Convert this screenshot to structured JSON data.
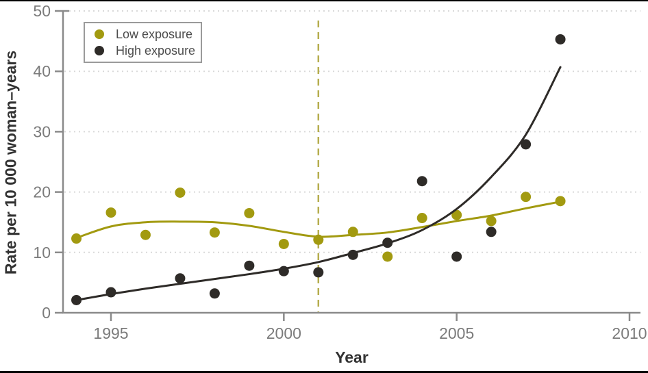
{
  "figure": {
    "background": "#ffffff",
    "border_color": "#000000"
  },
  "legend": {
    "position": "top-left",
    "items": [
      {
        "label": "Low exposure",
        "color": "#a29a10"
      },
      {
        "label": "High exposure",
        "color": "#2e2b28"
      }
    ]
  },
  "chart_data": {
    "type": "scatter",
    "title": "",
    "xlabel": "Year",
    "ylabel": "Rate per 10 000 woman–years",
    "xlim": [
      1993.6,
      2010.3
    ],
    "ylim": [
      0,
      50
    ],
    "x_ticks": [
      1995,
      2000,
      2005,
      2010
    ],
    "y_ticks": [
      0,
      10,
      20,
      30,
      40,
      50
    ],
    "grid": "dotted-horizontal",
    "grid_color": "#d9d9d9",
    "axis_color": "#8a8a8a",
    "tick_label_color": "#7b7b7b",
    "reference_line": {
      "x": 2001,
      "style": "dashed",
      "color": "#b5ad4e"
    },
    "series": [
      {
        "name": "Low exposure",
        "color": "#a29a10",
        "points": [
          [
            1994,
            12.3
          ],
          [
            1995,
            16.6
          ],
          [
            1996,
            12.9
          ],
          [
            1997,
            19.9
          ],
          [
            1998,
            13.3
          ],
          [
            1999,
            16.5
          ],
          [
            2000,
            11.4
          ],
          [
            2001,
            12.1
          ],
          [
            2002,
            13.4
          ],
          [
            2003,
            9.3
          ],
          [
            2004,
            15.7
          ],
          [
            2005,
            16.2
          ],
          [
            2006,
            15.2
          ],
          [
            2007,
            19.2
          ],
          [
            2008,
            18.5
          ]
        ],
        "trend": [
          [
            1994,
            12.4
          ],
          [
            1995,
            14.3
          ],
          [
            1996,
            15.0
          ],
          [
            1997,
            15.1
          ],
          [
            1998,
            15.0
          ],
          [
            1999,
            14.4
          ],
          [
            2000,
            13.4
          ],
          [
            2001,
            12.6
          ],
          [
            2002,
            12.9
          ],
          [
            2003,
            13.3
          ],
          [
            2004,
            14.2
          ],
          [
            2005,
            15.2
          ],
          [
            2006,
            16.1
          ],
          [
            2007,
            17.3
          ],
          [
            2008,
            18.4
          ]
        ]
      },
      {
        "name": "High exposure",
        "color": "#2e2b28",
        "points": [
          [
            1994,
            2.1
          ],
          [
            1995,
            3.4
          ],
          [
            1997,
            5.7
          ],
          [
            1998,
            3.2
          ],
          [
            1999,
            7.8
          ],
          [
            2000,
            6.9
          ],
          [
            2001,
            6.7
          ],
          [
            2002,
            9.6
          ],
          [
            2003,
            11.6
          ],
          [
            2004,
            21.8
          ],
          [
            2005,
            9.3
          ],
          [
            2006,
            13.4
          ],
          [
            2007,
            27.9
          ],
          [
            2008,
            45.3
          ]
        ],
        "trend": [
          [
            1994,
            2.1
          ],
          [
            1995,
            3.1
          ],
          [
            1996,
            4.0
          ],
          [
            1997,
            4.8
          ],
          [
            1998,
            5.6
          ],
          [
            1999,
            6.4
          ],
          [
            2000,
            7.3
          ],
          [
            2001,
            8.4
          ],
          [
            2002,
            9.9
          ],
          [
            2003,
            11.5
          ],
          [
            2004,
            13.7
          ],
          [
            2005,
            17.2
          ],
          [
            2006,
            22.5
          ],
          [
            2007,
            29.5
          ],
          [
            2008,
            40.7
          ]
        ]
      }
    ]
  }
}
